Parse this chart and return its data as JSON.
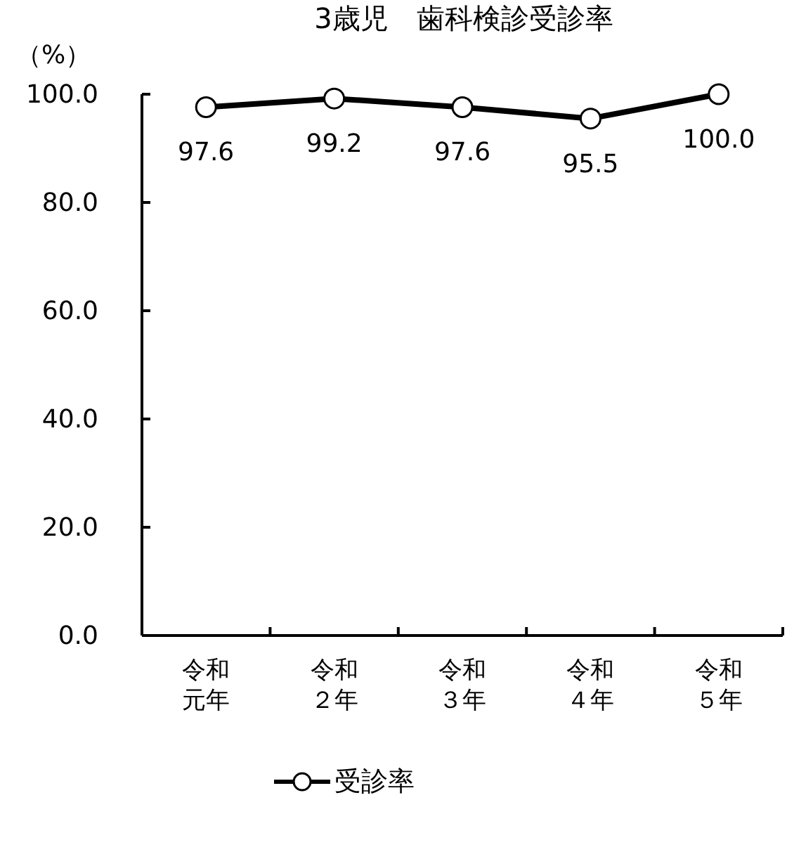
{
  "chart_data": {
    "type": "line",
    "title": "3歳児　歯科検診受診率",
    "ylabel": "（%）",
    "categories": [
      "令和元年",
      "令和２年",
      "令和３年",
      "令和４年",
      "令和５年"
    ],
    "series": [
      {
        "name": "受診率",
        "color": "#000000",
        "values": [
          97.6,
          99.2,
          97.6,
          95.5,
          100.0
        ],
        "value_labels": [
          "97.6",
          "99.2",
          "97.6",
          "95.5",
          "100.0"
        ]
      }
    ],
    "ylim": [
      0,
      100
    ],
    "yticks": [
      {
        "value": 0,
        "label": "0.0"
      },
      {
        "value": 20,
        "label": "20.0"
      },
      {
        "value": 40,
        "label": "40.0"
      },
      {
        "value": 60,
        "label": "60.0"
      },
      {
        "value": 80,
        "label": "80.0"
      },
      {
        "value": 100,
        "label": "100.0"
      }
    ],
    "marker": "circle",
    "line_style": "solid",
    "legend": "bottom"
  }
}
